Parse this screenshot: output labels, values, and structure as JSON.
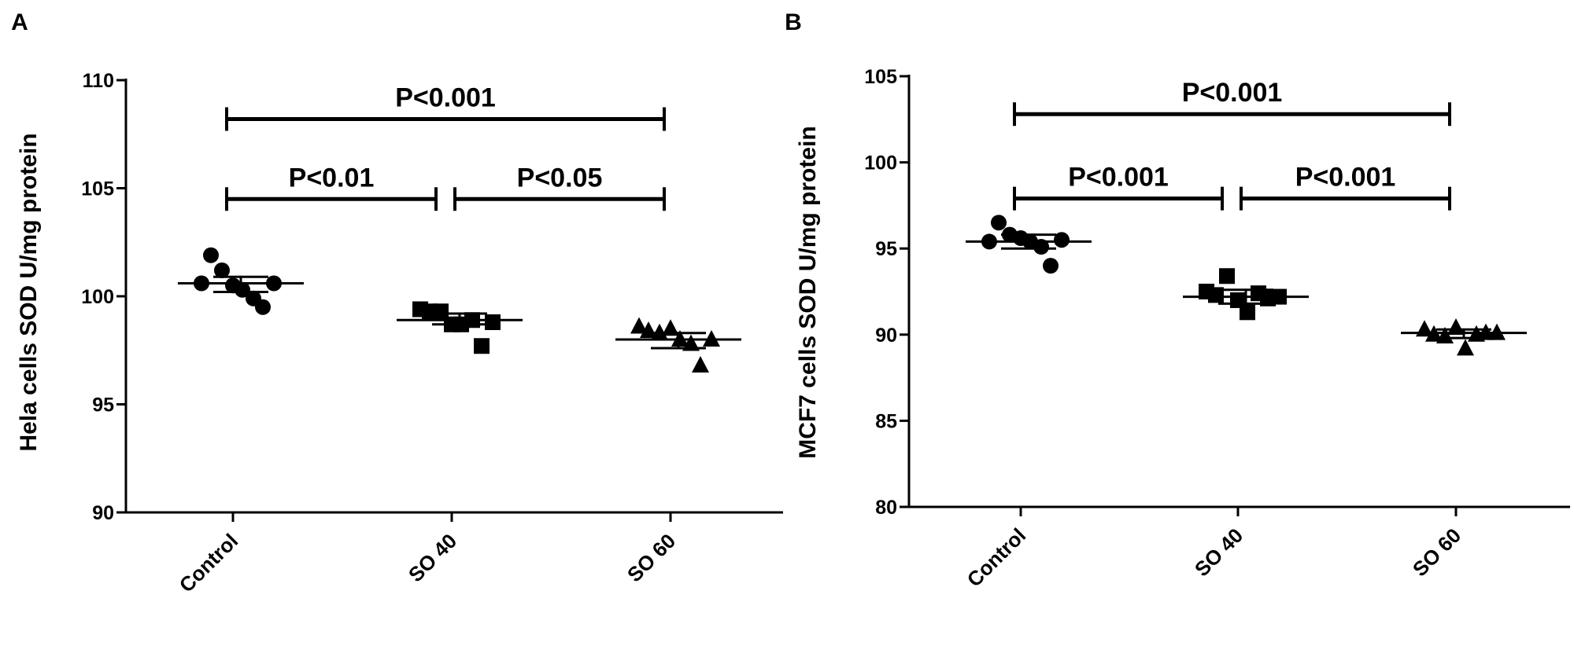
{
  "colors": {
    "ink": "#000000",
    "background": "#ffffff"
  },
  "chart_data": [
    {
      "panel_label": "A",
      "type": "scatter",
      "ylabel": "Hela cells SOD U/mg protein",
      "xlabel": "",
      "ylim": [
        90,
        110
      ],
      "yticks": [
        "90",
        "95",
        "100",
        "105",
        "110"
      ],
      "categories": [
        "Control",
        "SO 40",
        "SO 60"
      ],
      "groups": [
        {
          "name": "Control",
          "marker": "circle",
          "points": [
            100.6,
            101.9,
            101.2,
            100.5,
            100.3,
            99.9,
            99.5,
            100.6
          ],
          "mean": 100.6,
          "error_low": 100.2,
          "error_high": 100.9
        },
        {
          "name": "SO 40",
          "marker": "square",
          "points": [
            99.4,
            99.3,
            99.3,
            98.7,
            98.7,
            98.9,
            97.7,
            98.8
          ],
          "mean": 98.9,
          "error_low": 98.7,
          "error_high": 99.2
        },
        {
          "name": "SO 60",
          "marker": "triangle",
          "points": [
            98.6,
            98.4,
            98.3,
            98.5,
            98.0,
            97.8,
            96.8,
            98.0
          ],
          "mean": 98.0,
          "error_low": 97.6,
          "error_high": 98.3
        }
      ],
      "annotations": [
        {
          "text": "P<0.001",
          "from": 0,
          "to": 2,
          "y": 108.2
        },
        {
          "text": "P<0.01",
          "from": 0,
          "to": 1,
          "y": 104.5
        },
        {
          "text": "P<0.05",
          "from": 1,
          "to": 2,
          "y": 104.5
        }
      ]
    },
    {
      "panel_label": "B",
      "type": "scatter",
      "ylabel": "MCF7 cells SOD U/mg protein",
      "xlabel": "",
      "ylim": [
        80,
        105
      ],
      "yticks": [
        "80",
        "85",
        "90",
        "95",
        "100",
        "105"
      ],
      "categories": [
        "Control",
        "SO 40",
        "SO 60"
      ],
      "groups": [
        {
          "name": "Control",
          "marker": "circle",
          "points": [
            95.4,
            96.5,
            95.8,
            95.6,
            95.4,
            95.1,
            94.0,
            95.5
          ],
          "mean": 95.4,
          "error_low": 95.0,
          "error_high": 95.8
        },
        {
          "name": "SO 40",
          "marker": "square",
          "points": [
            92.5,
            92.3,
            93.4,
            92.0,
            91.3,
            92.4,
            92.1,
            92.2
          ],
          "mean": 92.2,
          "error_low": 91.8,
          "error_high": 92.6
        },
        {
          "name": "SO 60",
          "marker": "triangle",
          "points": [
            90.3,
            90.0,
            89.9,
            90.4,
            89.2,
            90.0,
            90.1,
            90.1
          ],
          "mean": 90.1,
          "error_low": 89.8,
          "error_high": 90.3
        }
      ],
      "annotations": [
        {
          "text": "P<0.001",
          "from": 0,
          "to": 2,
          "y": 102.8
        },
        {
          "text": "P<0.001",
          "from": 0,
          "to": 1,
          "y": 97.9
        },
        {
          "text": "P<0.001",
          "from": 1,
          "to": 2,
          "y": 97.9
        }
      ]
    }
  ]
}
